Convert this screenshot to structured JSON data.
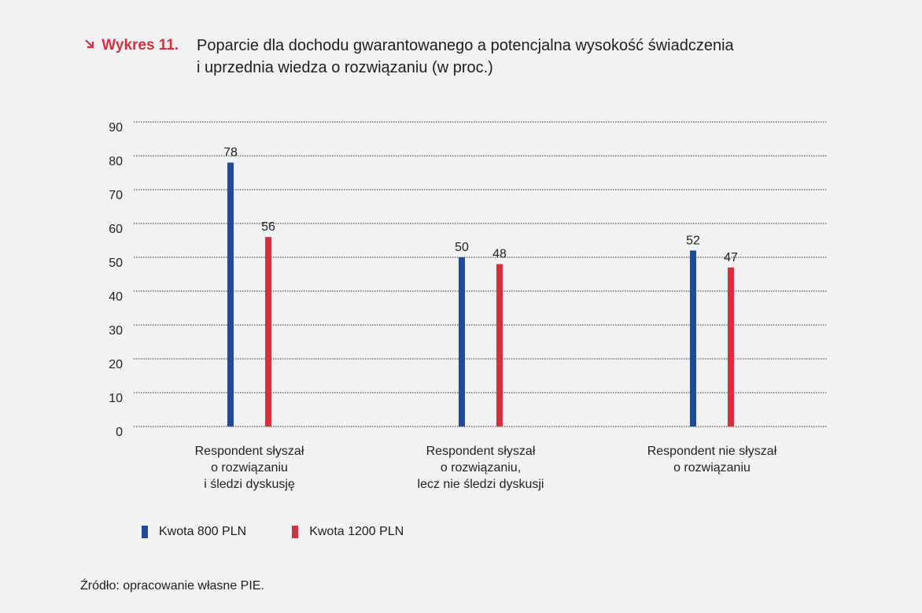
{
  "figure": {
    "label": "Wykres 11.",
    "title_line1": "Poparcie dla dochodu gwarantowanego a potencjalna wysokość świadczenia",
    "title_line2": "i uprzednia wiedza o rozwiązaniu (w proc.)"
  },
  "chart_data": {
    "type": "bar",
    "title": "Poparcie dla dochodu gwarantowanego a potencjalna wysokość świadczenia i uprzednia wiedza o rozwiązaniu (w proc.)",
    "categories": [
      [
        "Respondent słyszał",
        "o rozwiązaniu",
        "i śledzi dyskusję"
      ],
      [
        "Respondent słyszał",
        "o rozwiązaniu,",
        "lecz nie śledzi dyskusji"
      ],
      [
        "Respondent nie słyszał",
        "o rozwiązaniu"
      ]
    ],
    "series": [
      {
        "name": "Kwota 800 PLN",
        "color": "#1f4b99",
        "values": [
          78,
          50,
          52
        ]
      },
      {
        "name": "Kwota 1200 PLN",
        "color": "#d6303e",
        "values": [
          56,
          48,
          47
        ]
      }
    ],
    "ylim": [
      0,
      90
    ],
    "yticks": [
      0,
      10,
      20,
      30,
      40,
      50,
      60,
      70,
      80,
      90
    ],
    "grid": true,
    "legend": "bottom-left"
  },
  "source": "Źródło: opracowanie własne PIE."
}
